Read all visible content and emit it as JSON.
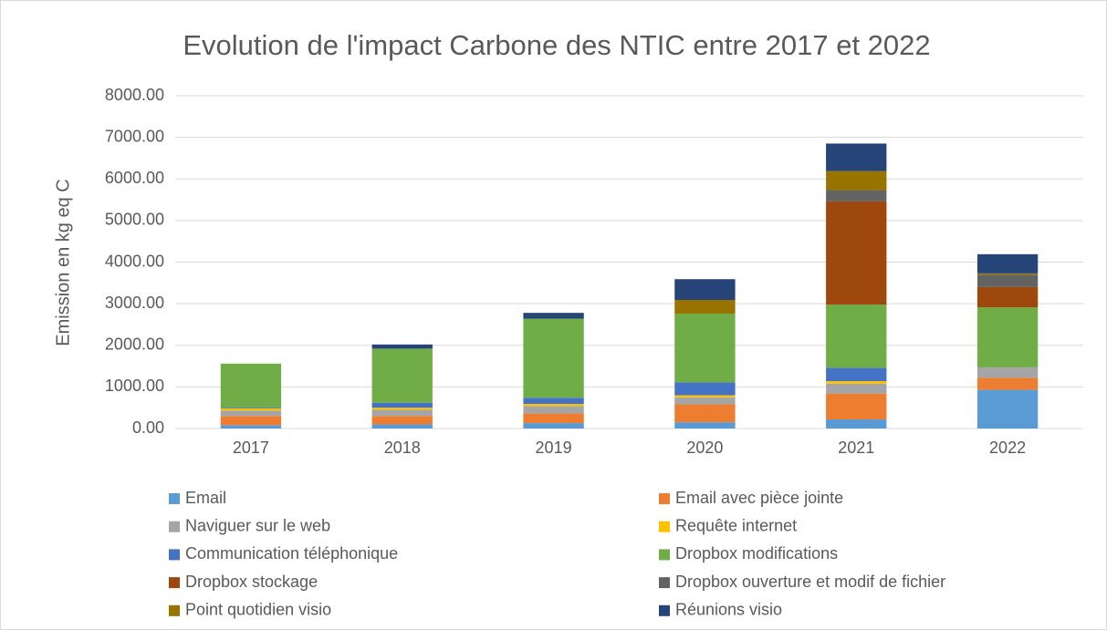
{
  "chart_data": {
    "type": "stacked_bar",
    "title": "Evolution de l'impact Carbone des NTIC entre 2017 et 2022",
    "y_axis_label": "Emission en kg eq C",
    "categories": [
      "2017",
      "2018",
      "2019",
      "2020",
      "2021",
      "2022"
    ],
    "series": [
      {
        "name": "Email",
        "color": "#5b9bd5",
        "values": [
          80,
          100,
          130,
          150,
          220,
          930
        ]
      },
      {
        "name": "Email avec pièce jointe",
        "color": "#ed7d31",
        "values": [
          220,
          200,
          230,
          430,
          620,
          290
        ]
      },
      {
        "name": "Naviguer sur le web",
        "color": "#a5a5a5",
        "values": [
          130,
          150,
          180,
          170,
          240,
          250
        ]
      },
      {
        "name": "Requête internet",
        "color": "#ffc000",
        "values": [
          50,
          50,
          50,
          50,
          60,
          0
        ]
      },
      {
        "name": "Communication téléphonique",
        "color": "#4472c4",
        "values": [
          20,
          120,
          150,
          310,
          320,
          0
        ]
      },
      {
        "name": "Dropbox modifications",
        "color": "#70ad47",
        "values": [
          1060,
          1300,
          1900,
          1650,
          1520,
          1440
        ]
      },
      {
        "name": "Dropbox stockage",
        "color": "#9e480e",
        "values": [
          0,
          0,
          0,
          0,
          2480,
          490
        ]
      },
      {
        "name": "Dropbox ouverture et modif de fichier",
        "color": "#636363",
        "values": [
          0,
          0,
          0,
          0,
          270,
          300
        ]
      },
      {
        "name": "Point quotidien visio",
        "color": "#997300",
        "values": [
          0,
          0,
          0,
          330,
          460,
          30
        ]
      },
      {
        "name": "Réunions visio",
        "color": "#264478",
        "values": [
          0,
          100,
          140,
          500,
          660,
          460
        ]
      }
    ],
    "ylim": [
      0,
      8000
    ],
    "yticks": [
      {
        "value": 0,
        "label": "0.00"
      },
      {
        "value": 1000,
        "label": "1000.00"
      },
      {
        "value": 2000,
        "label": "2000.00"
      },
      {
        "value": 3000,
        "label": "3000.00"
      },
      {
        "value": 4000,
        "label": "4000.00"
      },
      {
        "value": 5000,
        "label": "5000.00"
      },
      {
        "value": 6000,
        "label": "6000.00"
      },
      {
        "value": 7000,
        "label": "7000.00"
      },
      {
        "value": 8000,
        "label": "8000.00"
      }
    ],
    "grid": true,
    "legend": "bottom"
  }
}
